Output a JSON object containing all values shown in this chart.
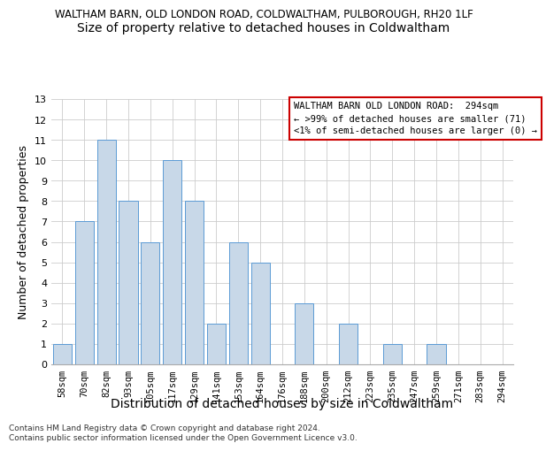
{
  "title_line1": "WALTHAM BARN, OLD LONDON ROAD, COLDWALTHAM, PULBOROUGH, RH20 1LF",
  "title_line2": "Size of property relative to detached houses in Coldwaltham",
  "xlabel": "Distribution of detached houses by size in Coldwaltham",
  "ylabel": "Number of detached properties",
  "categories": [
    "58sqm",
    "70sqm",
    "82sqm",
    "93sqm",
    "105sqm",
    "117sqm",
    "129sqm",
    "141sqm",
    "153sqm",
    "164sqm",
    "176sqm",
    "188sqm",
    "200sqm",
    "212sqm",
    "223sqm",
    "235sqm",
    "247sqm",
    "259sqm",
    "271sqm",
    "283sqm",
    "294sqm"
  ],
  "values": [
    1,
    7,
    11,
    8,
    6,
    10,
    8,
    2,
    6,
    5,
    0,
    3,
    0,
    2,
    0,
    1,
    0,
    1,
    0,
    0,
    0
  ],
  "bar_color": "#c8d8e8",
  "bar_edge_color": "#5b9bd5",
  "ylim": [
    0,
    13
  ],
  "yticks": [
    0,
    1,
    2,
    3,
    4,
    5,
    6,
    7,
    8,
    9,
    10,
    11,
    12,
    13
  ],
  "annotation_title": "WALTHAM BARN OLD LONDON ROAD:  294sqm",
  "annotation_line2": "← >99% of detached houses are smaller (71)",
  "annotation_line3": "<1% of semi-detached houses are larger (0) →",
  "annotation_box_color": "#ffffff",
  "annotation_border_color": "#cc0000",
  "footer_line1": "Contains HM Land Registry data © Crown copyright and database right 2024.",
  "footer_line2": "Contains public sector information licensed under the Open Government Licence v3.0.",
  "bg_color": "#ffffff",
  "grid_color": "#cccccc",
  "title1_fontsize": 8.5,
  "title2_fontsize": 10,
  "xlabel_fontsize": 10,
  "ylabel_fontsize": 9,
  "tick_fontsize": 7.5,
  "annotation_fontsize": 7.5,
  "footer_fontsize": 6.5
}
